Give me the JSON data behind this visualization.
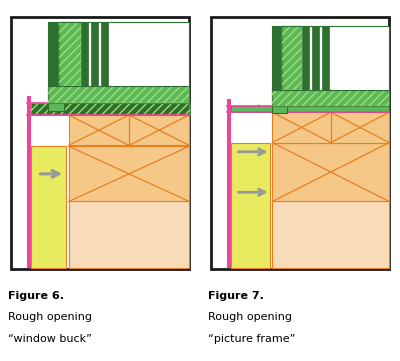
{
  "fig_width": 4.0,
  "fig_height": 3.61,
  "dpi": 100,
  "background": "#ffffff",
  "border_color": "#1a1a1a",
  "fig6_label": "Figure 6.",
  "fig6_sub1": "Rough opening",
  "fig6_sub2": "“window buck”",
  "fig7_label": "Figure 7.",
  "fig7_sub1": "Rough opening",
  "fig7_sub2": "“picture frame”",
  "peach_light": "#f8dbb8",
  "peach_mid": "#f5c888",
  "yellow_green": "#e8ea60",
  "green_dark": "#2d7030",
  "green_mid": "#5cb85c",
  "green_light": "#78d050",
  "green_very_light": "#a0e070",
  "pink": "#ee4499",
  "orange_line": "#e88020",
  "gray_arrow": "#aaaaaa",
  "white": "#ffffff"
}
